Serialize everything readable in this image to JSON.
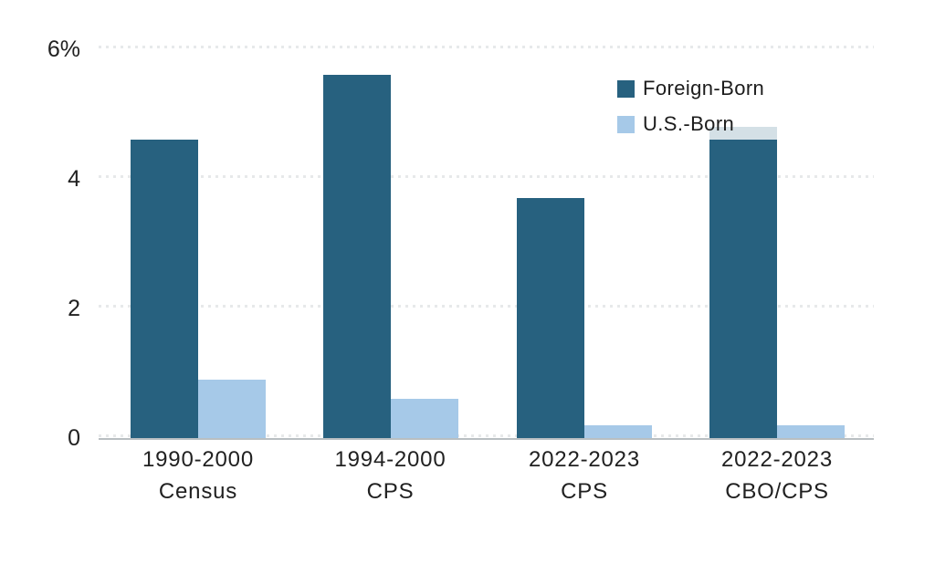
{
  "chart_data": {
    "type": "bar",
    "title": "",
    "xlabel": "",
    "ylabel": "",
    "categories": [
      {
        "line1": "1990-2000",
        "line2": "Census"
      },
      {
        "line1": "1994-2000",
        "line2": "CPS"
      },
      {
        "line1": "2022-2023",
        "line2": "CPS"
      },
      {
        "line1": "2022-2023",
        "line2": "CBO/CPS"
      }
    ],
    "series": [
      {
        "name": "Foreign-Born",
        "color": "#27617F",
        "values": [
          4.6,
          5.6,
          3.7,
          4.6
        ]
      },
      {
        "name": "U.S.-Born",
        "color": "#A6C9E8",
        "values": [
          0.9,
          0.6,
          0.2,
          0.2
        ]
      }
    ],
    "overlay_segment": {
      "series": "Foreign-Born",
      "category": "2022-2023 CBO/CPS",
      "from": 4.6,
      "to": 4.8,
      "color": "#D4E0E6"
    },
    "y_axis": {
      "min": 0,
      "max": 6,
      "unit": "%",
      "ticks": [
        6,
        4,
        2,
        0
      ],
      "tick_labels": [
        "6%",
        "4",
        "2",
        "0"
      ]
    },
    "grid": "dotted-horizontal",
    "legend_position": "top-right"
  },
  "legend": {
    "items": [
      {
        "label": "Foreign-Born",
        "color": "#27617F"
      },
      {
        "label": "U.S.-Born",
        "color": "#A6C9E8"
      }
    ]
  },
  "colors": {
    "foreign_born": "#27617F",
    "us_born": "#A6C9E8",
    "overlay_cap": "#D4E0E6",
    "grid_dot": "#E7E9EA",
    "axis_line": "#B9BFC2",
    "text": "#212121",
    "background": "#FFFFFF"
  }
}
